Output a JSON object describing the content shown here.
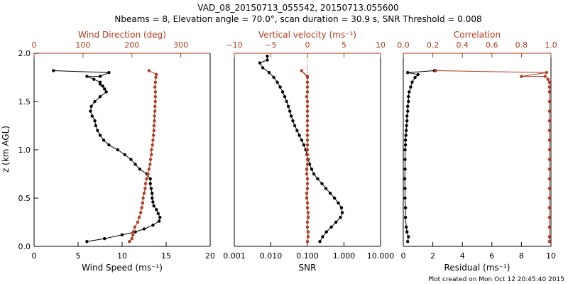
{
  "header": {
    "title": "VAD_08_20150713_055542, 20150713.055600",
    "subtitle": "Nbeams = 8, Elevation angle = 70.0°, scan duration = 30.9 s, SNR Threshold = 0.008"
  },
  "footer": {
    "credit": "Plot created on Mon Oct 12 20:45:40 2015"
  },
  "colors": {
    "primary": "#000000",
    "secondary": "#b23a1e"
  },
  "chart_data": [
    {
      "type": "line",
      "panel": "wind",
      "ylabel": "z (km AGL)",
      "ylim": [
        0,
        2
      ],
      "yticks": [
        0.0,
        0.5,
        1.0,
        1.5,
        2.0
      ],
      "ytick_labels": [
        "0.0",
        "0.5",
        "1.0",
        "1.5",
        "2.0"
      ],
      "bottom_axis": {
        "label": "Wind Speed (ms⁻¹)",
        "lim": [
          0,
          20
        ],
        "ticks": [
          0,
          5,
          10,
          15,
          20
        ],
        "tick_labels": [
          "0",
          "5",
          "10",
          "15",
          "20"
        ],
        "scale": "linear"
      },
      "top_axis": {
        "label": "Wind Direction (deg)",
        "lim": [
          0,
          360
        ],
        "ticks": [
          0,
          100,
          200,
          300
        ],
        "tick_labels": [
          "0",
          "100",
          "200",
          "300"
        ],
        "scale": "linear"
      },
      "series": [
        {
          "color": "#000000",
          "axis": "bottom",
          "points": [
            [
              6.0,
              0.05
            ],
            [
              8.0,
              0.08
            ],
            [
              10.0,
              0.12
            ],
            [
              11.5,
              0.15
            ],
            [
              12.5,
              0.18
            ],
            [
              13.5,
              0.22
            ],
            [
              14.2,
              0.26
            ],
            [
              14.3,
              0.3
            ],
            [
              14.1,
              0.34
            ],
            [
              13.9,
              0.38
            ],
            [
              13.6,
              0.42
            ],
            [
              13.5,
              0.46
            ],
            [
              13.4,
              0.5
            ],
            [
              13.4,
              0.55
            ],
            [
              13.3,
              0.6
            ],
            [
              13.2,
              0.65
            ],
            [
              13.2,
              0.7
            ],
            [
              12.8,
              0.75
            ],
            [
              12.0,
              0.8
            ],
            [
              11.5,
              0.85
            ],
            [
              11.0,
              0.9
            ],
            [
              10.3,
              0.95
            ],
            [
              9.5,
              1.0
            ],
            [
              8.5,
              1.05
            ],
            [
              7.9,
              1.1
            ],
            [
              7.5,
              1.15
            ],
            [
              7.2,
              1.2
            ],
            [
              7.0,
              1.25
            ],
            [
              6.9,
              1.3
            ],
            [
              6.6,
              1.35
            ],
            [
              6.4,
              1.4
            ],
            [
              6.5,
              1.45
            ],
            [
              6.9,
              1.5
            ],
            [
              7.5,
              1.55
            ],
            [
              8.2,
              1.6
            ],
            [
              8.0,
              1.63
            ],
            [
              7.8,
              1.66
            ],
            [
              7.5,
              1.68
            ],
            [
              7.5,
              1.7
            ],
            [
              6.8,
              1.73
            ],
            [
              6.0,
              1.76
            ],
            [
              7.5,
              1.76
            ],
            [
              8.5,
              1.8
            ],
            [
              2.2,
              1.82
            ]
          ]
        },
        {
          "color": "#b23a1e",
          "axis": "top",
          "points": [
            [
              195,
              0.05
            ],
            [
              200,
              0.08
            ],
            [
              202,
              0.12
            ],
            [
              203,
              0.15
            ],
            [
              206,
              0.2
            ],
            [
              212,
              0.25
            ],
            [
              215,
              0.3
            ],
            [
              218,
              0.35
            ],
            [
              220,
              0.4
            ],
            [
              222,
              0.45
            ],
            [
              223,
              0.5
            ],
            [
              225,
              0.55
            ],
            [
              227,
              0.6
            ],
            [
              228,
              0.65
            ],
            [
              230,
              0.7
            ],
            [
              233,
              0.75
            ],
            [
              235,
              0.8
            ],
            [
              237,
              0.85
            ],
            [
              238,
              0.9
            ],
            [
              240,
              0.95
            ],
            [
              240,
              1.0
            ],
            [
              242,
              1.05
            ],
            [
              243,
              1.1
            ],
            [
              244,
              1.15
            ],
            [
              245,
              1.2
            ],
            [
              245,
              1.25
            ],
            [
              246,
              1.3
            ],
            [
              246,
              1.35
            ],
            [
              247,
              1.4
            ],
            [
              247,
              1.45
            ],
            [
              248,
              1.5
            ],
            [
              248,
              1.55
            ],
            [
              248,
              1.6
            ],
            [
              247,
              1.65
            ],
            [
              248,
              1.7
            ],
            [
              249,
              1.75
            ],
            [
              250,
              1.78
            ],
            [
              235,
              1.82
            ]
          ]
        }
      ]
    },
    {
      "type": "line",
      "panel": "snr-w",
      "ylim": [
        0,
        2
      ],
      "bottom_axis": {
        "label": "SNR",
        "lim": [
          0.001,
          10
        ],
        "ticks": [
          0.001,
          0.01,
          0.1,
          1,
          10
        ],
        "tick_labels": [
          "0.001",
          "0.010",
          "0.100",
          "1.000",
          "10.000"
        ],
        "scale": "log"
      },
      "top_axis": {
        "label": "Vertical velocity (ms⁻¹)",
        "lim": [
          -10,
          10
        ],
        "ticks": [
          -10,
          -5,
          0,
          5,
          10
        ],
        "tick_labels": [
          "−10",
          "−5",
          "0",
          "5",
          "10"
        ],
        "scale": "linear"
      },
      "series": [
        {
          "color": "#000000",
          "axis": "bottom",
          "points": [
            [
              0.22,
              0.05
            ],
            [
              0.26,
              0.1
            ],
            [
              0.33,
              0.15
            ],
            [
              0.45,
              0.2
            ],
            [
              0.6,
              0.25
            ],
            [
              0.8,
              0.3
            ],
            [
              0.9,
              0.35
            ],
            [
              0.85,
              0.4
            ],
            [
              0.7,
              0.45
            ],
            [
              0.55,
              0.5
            ],
            [
              0.42,
              0.55
            ],
            [
              0.32,
              0.6
            ],
            [
              0.25,
              0.65
            ],
            [
              0.19,
              0.7
            ],
            [
              0.15,
              0.75
            ],
            [
              0.13,
              0.8
            ],
            [
              0.115,
              0.85
            ],
            [
              0.105,
              0.9
            ],
            [
              0.097,
              0.95
            ],
            [
              0.09,
              1.0
            ],
            [
              0.08,
              1.05
            ],
            [
              0.07,
              1.1
            ],
            [
              0.06,
              1.15
            ],
            [
              0.052,
              1.2
            ],
            [
              0.045,
              1.25
            ],
            [
              0.04,
              1.3
            ],
            [
              0.036,
              1.35
            ],
            [
              0.033,
              1.4
            ],
            [
              0.03,
              1.45
            ],
            [
              0.027,
              1.5
            ],
            [
              0.024,
              1.55
            ],
            [
              0.021,
              1.6
            ],
            [
              0.018,
              1.65
            ],
            [
              0.015,
              1.7
            ],
            [
              0.012,
              1.75
            ],
            [
              0.009,
              1.8
            ],
            [
              0.006,
              1.85
            ],
            [
              0.005,
              1.9
            ],
            [
              0.008,
              1.93
            ],
            [
              0.008,
              1.97
            ]
          ]
        },
        {
          "color": "#b23a1e",
          "axis": "top",
          "points": [
            [
              0.0,
              0.05
            ],
            [
              0.1,
              0.1
            ],
            [
              0.1,
              0.15
            ],
            [
              0.0,
              0.2
            ],
            [
              0.0,
              0.25
            ],
            [
              0.1,
              0.3
            ],
            [
              0.1,
              0.35
            ],
            [
              0.0,
              0.4
            ],
            [
              0.0,
              0.45
            ],
            [
              -0.1,
              0.5
            ],
            [
              -0.1,
              0.55
            ],
            [
              0.0,
              0.6
            ],
            [
              0.0,
              0.65
            ],
            [
              0.0,
              0.7
            ],
            [
              -0.1,
              0.75
            ],
            [
              -0.1,
              0.8
            ],
            [
              0.0,
              0.85
            ],
            [
              0.0,
              0.9
            ],
            [
              0.0,
              0.95
            ],
            [
              0.0,
              1.0
            ],
            [
              0.0,
              1.05
            ],
            [
              0.0,
              1.1
            ],
            [
              0.0,
              1.15
            ],
            [
              0.0,
              1.2
            ],
            [
              0.0,
              1.25
            ],
            [
              0.0,
              1.3
            ],
            [
              0.0,
              1.35
            ],
            [
              0.0,
              1.4
            ],
            [
              0.0,
              1.45
            ],
            [
              0.0,
              1.5
            ],
            [
              -0.1,
              1.55
            ],
            [
              0.0,
              1.6
            ],
            [
              0.0,
              1.65
            ],
            [
              0.0,
              1.7
            ],
            [
              0.0,
              1.75
            ],
            [
              -0.8,
              1.82
            ],
            [
              0.0,
              1.76
            ]
          ]
        }
      ]
    },
    {
      "type": "line",
      "panel": "residual-correlation",
      "ylim": [
        0,
        2
      ],
      "bottom_axis": {
        "label": "Residual (ms⁻¹)",
        "lim": [
          0,
          10
        ],
        "ticks": [
          0,
          2,
          4,
          6,
          8,
          10
        ],
        "tick_labels": [
          "0",
          "2",
          "4",
          "6",
          "8",
          "10"
        ],
        "scale": "linear"
      },
      "top_axis": {
        "label": "Correlation",
        "lim": [
          0,
          1
        ],
        "ticks": [
          0,
          0.2,
          0.4,
          0.6,
          0.8,
          1.0
        ],
        "tick_labels": [
          "0.0",
          "0.2",
          "0.4",
          "0.6",
          "0.8",
          "1.0"
        ],
        "scale": "linear"
      },
      "series": [
        {
          "color": "#000000",
          "axis": "bottom",
          "points": [
            [
              0.3,
              0.05
            ],
            [
              0.35,
              0.1
            ],
            [
              0.25,
              0.15
            ],
            [
              0.2,
              0.2
            ],
            [
              0.15,
              0.3
            ],
            [
              0.15,
              0.4
            ],
            [
              0.12,
              0.5
            ],
            [
              0.12,
              0.6
            ],
            [
              0.1,
              0.7
            ],
            [
              0.12,
              0.8
            ],
            [
              0.12,
              0.9
            ],
            [
              0.12,
              1.0
            ],
            [
              0.15,
              1.05
            ],
            [
              0.15,
              1.1
            ],
            [
              0.18,
              1.15
            ],
            [
              0.2,
              1.2
            ],
            [
              0.22,
              1.25
            ],
            [
              0.25,
              1.3
            ],
            [
              0.25,
              1.35
            ],
            [
              0.3,
              1.4
            ],
            [
              0.3,
              1.45
            ],
            [
              0.35,
              1.5
            ],
            [
              0.35,
              1.55
            ],
            [
              0.4,
              1.6
            ],
            [
              0.5,
              1.65
            ],
            [
              0.6,
              1.7
            ],
            [
              0.8,
              1.75
            ],
            [
              1.0,
              1.78
            ],
            [
              0.3,
              1.8
            ],
            [
              2.1,
              1.82
            ]
          ]
        },
        {
          "color": "#b23a1e",
          "axis": "top",
          "points": [
            [
              0.99,
              0.05
            ],
            [
              0.99,
              0.1
            ],
            [
              0.99,
              0.2
            ],
            [
              0.99,
              0.3
            ],
            [
              0.99,
              0.4
            ],
            [
              0.99,
              0.5
            ],
            [
              0.99,
              0.6
            ],
            [
              0.99,
              0.7
            ],
            [
              0.99,
              0.8
            ],
            [
              0.99,
              0.9
            ],
            [
              0.99,
              1.0
            ],
            [
              0.99,
              1.1
            ],
            [
              0.99,
              1.2
            ],
            [
              0.99,
              1.3
            ],
            [
              0.99,
              1.4
            ],
            [
              0.99,
              1.5
            ],
            [
              0.99,
              1.6
            ],
            [
              0.99,
              1.65
            ],
            [
              0.99,
              1.7
            ],
            [
              0.98,
              1.73
            ],
            [
              0.96,
              1.76
            ],
            [
              0.8,
              1.76
            ],
            [
              0.97,
              1.8
            ],
            [
              0.22,
              1.82
            ]
          ]
        }
      ]
    }
  ]
}
